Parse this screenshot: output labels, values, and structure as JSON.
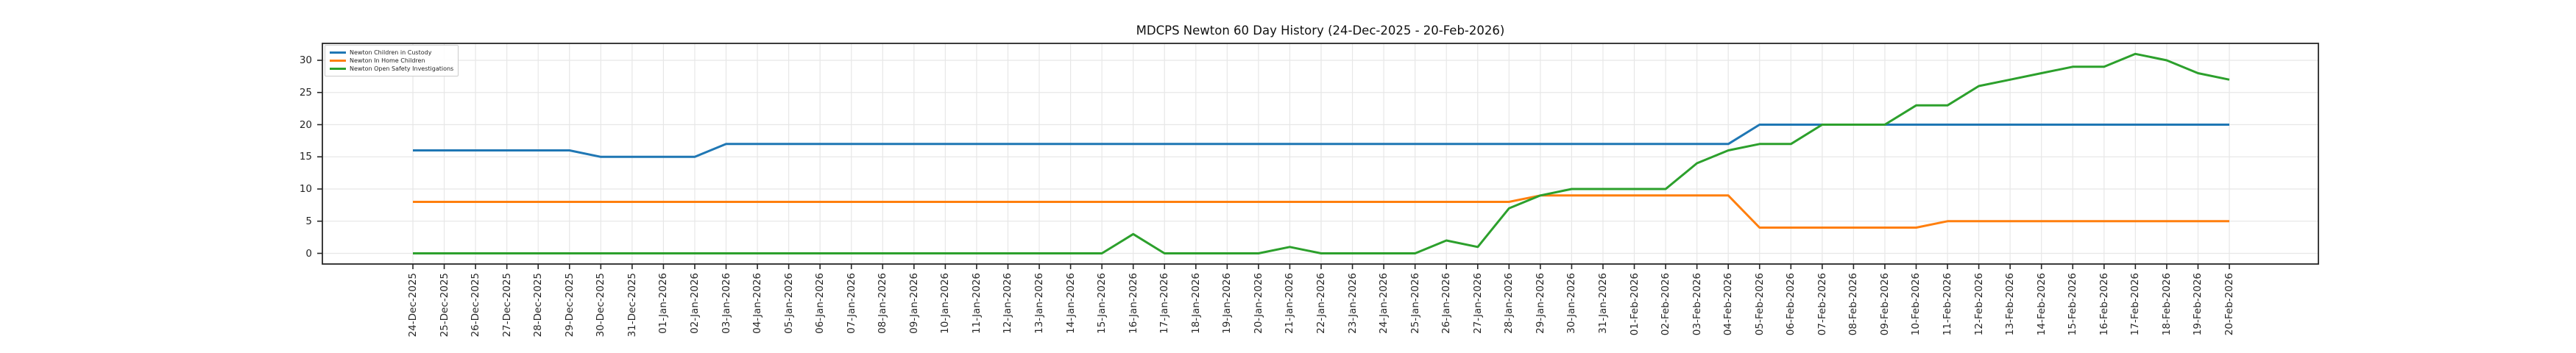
{
  "colors": {
    "background": "#ffffff",
    "axis": "#262626",
    "grid": "#e7e7e7",
    "text": "#262626",
    "series_blue": "#1f77b4",
    "series_orange": "#ff7f0e",
    "series_green": "#2ca02c"
  },
  "chart_data": {
    "type": "line",
    "title": "MDCPS Newton 60 Day History (24-Dec-2025 - 20-Feb-2026)",
    "xlabel": "",
    "ylabel": "",
    "grid": true,
    "legend_position": "upper left",
    "x_tick_rotation": 90,
    "ylim": [
      -1.6,
      32.6
    ],
    "yticks": [
      0,
      5,
      10,
      15,
      20,
      25,
      30
    ],
    "x": [
      "24-Dec-2025",
      "25-Dec-2025",
      "26-Dec-2025",
      "27-Dec-2025",
      "28-Dec-2025",
      "29-Dec-2025",
      "30-Dec-2025",
      "31-Dec-2025",
      "01-Jan-2026",
      "02-Jan-2026",
      "03-Jan-2026",
      "04-Jan-2026",
      "05-Jan-2026",
      "06-Jan-2026",
      "07-Jan-2026",
      "08-Jan-2026",
      "09-Jan-2026",
      "10-Jan-2026",
      "11-Jan-2026",
      "12-Jan-2026",
      "13-Jan-2026",
      "14-Jan-2026",
      "15-Jan-2026",
      "16-Jan-2026",
      "17-Jan-2026",
      "18-Jan-2026",
      "19-Jan-2026",
      "20-Jan-2026",
      "21-Jan-2026",
      "22-Jan-2026",
      "23-Jan-2026",
      "24-Jan-2026",
      "25-Jan-2026",
      "26-Jan-2026",
      "27-Jan-2026",
      "28-Jan-2026",
      "29-Jan-2026",
      "30-Jan-2026",
      "31-Jan-2026",
      "01-Feb-2026",
      "02-Feb-2026",
      "03-Feb-2026",
      "04-Feb-2026",
      "05-Feb-2026",
      "06-Feb-2026",
      "07-Feb-2026",
      "08-Feb-2026",
      "09-Feb-2026",
      "10-Feb-2026",
      "11-Feb-2026",
      "12-Feb-2026",
      "13-Feb-2026",
      "14-Feb-2026",
      "15-Feb-2026",
      "16-Feb-2026",
      "17-Feb-2026",
      "18-Feb-2026",
      "19-Feb-2026",
      "20-Feb-2026"
    ],
    "series": [
      {
        "name": "Newton Children in Custody",
        "color": "#1f77b4",
        "values": [
          16,
          16,
          16,
          16,
          16,
          16,
          15,
          15,
          15,
          15,
          17,
          17,
          17,
          17,
          17,
          17,
          17,
          17,
          17,
          17,
          17,
          17,
          17,
          17,
          17,
          17,
          17,
          17,
          17,
          17,
          17,
          17,
          17,
          17,
          17,
          17,
          17,
          17,
          17,
          17,
          17,
          17,
          17,
          20,
          20,
          20,
          20,
          20,
          20,
          20,
          20,
          20,
          20,
          20,
          20,
          20,
          20,
          20,
          20
        ]
      },
      {
        "name": "Newton In Home Children",
        "color": "#ff7f0e",
        "values": [
          8,
          8,
          8,
          8,
          8,
          8,
          8,
          8,
          8,
          8,
          8,
          8,
          8,
          8,
          8,
          8,
          8,
          8,
          8,
          8,
          8,
          8,
          8,
          8,
          8,
          8,
          8,
          8,
          8,
          8,
          8,
          8,
          8,
          8,
          8,
          8,
          9,
          9,
          9,
          9,
          9,
          9,
          9,
          4,
          4,
          4,
          4,
          4,
          4,
          5,
          5,
          5,
          5,
          5,
          5,
          5,
          5,
          5,
          5
        ]
      },
      {
        "name": "Newton Open Safety Investigations",
        "color": "#2ca02c",
        "values": [
          0,
          0,
          0,
          0,
          0,
          0,
          0,
          0,
          0,
          0,
          0,
          0,
          0,
          0,
          0,
          0,
          0,
          0,
          0,
          0,
          0,
          0,
          0,
          3,
          0,
          0,
          0,
          0,
          1,
          0,
          0,
          0,
          0,
          2,
          1,
          7,
          9,
          10,
          10,
          10,
          10,
          14,
          16,
          17,
          17,
          20,
          20,
          20,
          23,
          23,
          26,
          27,
          28,
          29,
          29,
          31,
          30,
          28,
          27
        ]
      }
    ]
  }
}
